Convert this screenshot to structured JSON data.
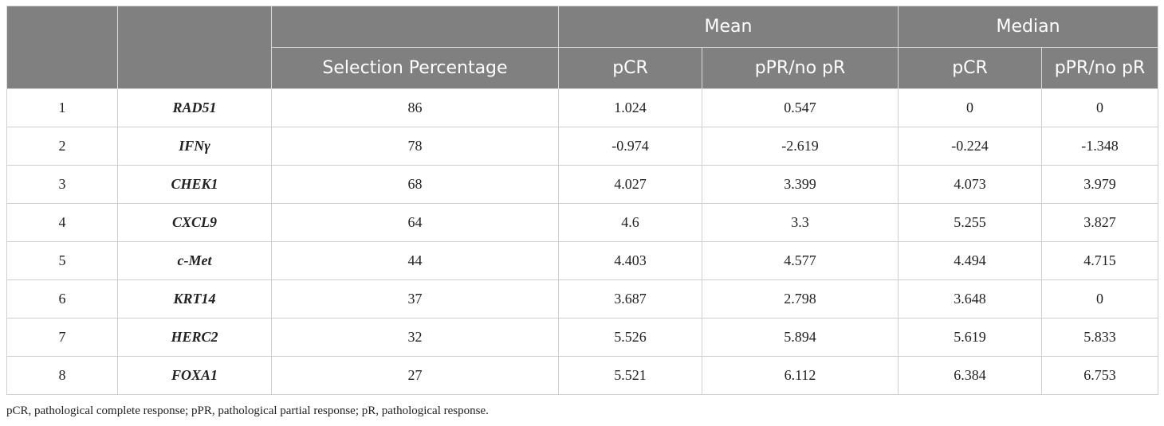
{
  "header": {
    "mean": "Mean",
    "median": "Median",
    "selection_percentage": "Selection Percentage",
    "mean_pcr": "pCR",
    "mean_ppr": "pPR/no pR",
    "median_pcr": "pCR",
    "median_ppr": "pPR/no pR"
  },
  "rows": [
    {
      "rank": "1",
      "gene": "RAD51",
      "selection": "86",
      "mean_pcr": "1.024",
      "mean_ppr": "0.547",
      "median_pcr": "0",
      "median_ppr": "0"
    },
    {
      "rank": "2",
      "gene": "IFNγ",
      "selection": "78",
      "mean_pcr": "-0.974",
      "mean_ppr": "-2.619",
      "median_pcr": "-0.224",
      "median_ppr": "-1.348"
    },
    {
      "rank": "3",
      "gene": "CHEK1",
      "selection": "68",
      "mean_pcr": "4.027",
      "mean_ppr": "3.399",
      "median_pcr": "4.073",
      "median_ppr": "3.979"
    },
    {
      "rank": "4",
      "gene": "CXCL9",
      "selection": "64",
      "mean_pcr": "4.6",
      "mean_ppr": "3.3",
      "median_pcr": "5.255",
      "median_ppr": "3.827"
    },
    {
      "rank": "5",
      "gene": "c-Met",
      "selection": "44",
      "mean_pcr": "4.403",
      "mean_ppr": "4.577",
      "median_pcr": "4.494",
      "median_ppr": "4.715"
    },
    {
      "rank": "6",
      "gene": "KRT14",
      "selection": "37",
      "mean_pcr": "3.687",
      "mean_ppr": "2.798",
      "median_pcr": "3.648",
      "median_ppr": "0"
    },
    {
      "rank": "7",
      "gene": "HERC2",
      "selection": "32",
      "mean_pcr": "5.526",
      "mean_ppr": "5.894",
      "median_pcr": "5.619",
      "median_ppr": "5.833"
    },
    {
      "rank": "8",
      "gene": "FOXA1",
      "selection": "27",
      "mean_pcr": "5.521",
      "mean_ppr": "6.112",
      "median_pcr": "6.384",
      "median_ppr": "6.753"
    }
  ],
  "footnote": "pCR, pathological complete response; pPR, pathological partial response; pR, pathological response.",
  "colors": {
    "header_bg": "#808080",
    "header_text": "#ffffff",
    "border": "#cfcfcf"
  }
}
